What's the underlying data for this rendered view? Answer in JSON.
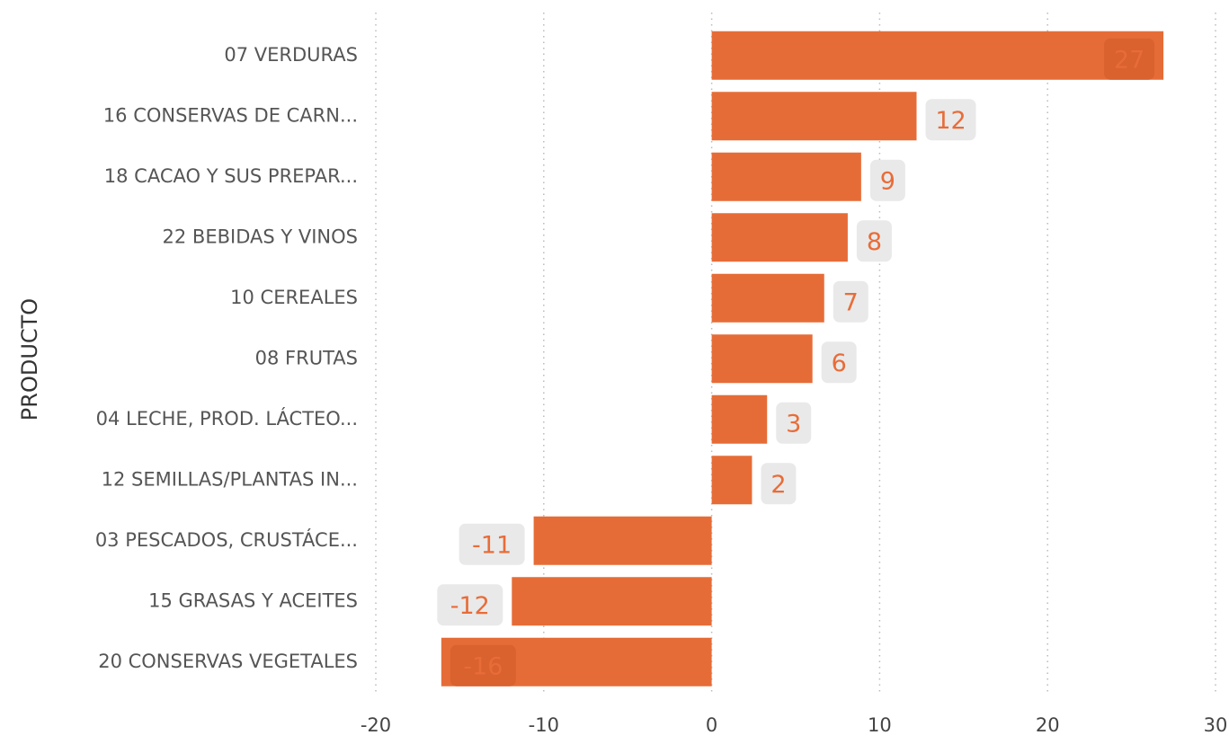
{
  "chart_data": {
    "type": "barh",
    "y_label": "PRODUCTO",
    "categories": [
      "07 VERDURAS",
      "16 CONSERVAS DE CARN...",
      "18 CACAO Y SUS PREPAR...",
      "22 BEBIDAS Y VINOS",
      "10 CEREALES",
      "08 FRUTAS",
      "04 LECHE, PROD. LÁCTEO...",
      "12 SEMILLAS/PLANTAS IN...",
      "03 PESCADOS, CRUSTÁCE...",
      "15 GRASAS Y ACEITES",
      "20 CONSERVAS VEGETALES"
    ],
    "values": [
      26.9,
      12.2,
      8.9,
      8.1,
      6.7,
      6.0,
      3.3,
      2.4,
      -10.6,
      -11.9,
      -16.1
    ],
    "value_labels": [
      "27",
      "12",
      "9",
      "8",
      "7",
      "6",
      "3",
      "2",
      "-11",
      "-12",
      "-16"
    ],
    "color": "#e66c37",
    "xlim": [
      -20,
      30
    ],
    "xticks": [
      -20,
      -10,
      0,
      10,
      20,
      30
    ],
    "grid": true
  }
}
